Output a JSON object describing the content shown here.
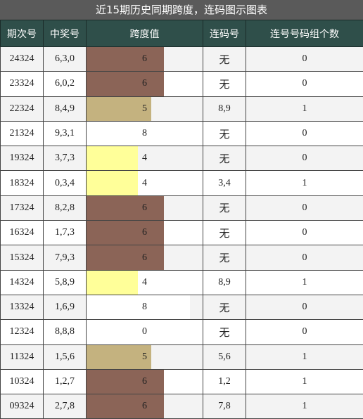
{
  "title": "近15期历史同期跨度，连码图示图表",
  "headers": [
    "期次号",
    "中奖号",
    "跨度值",
    "连码号",
    "连号号码组个数"
  ],
  "span_colors": {
    "0": "#ffffff",
    "4": "#ffff99",
    "5": "#c4b27f",
    "6": "#8b6457",
    "8": "#ffffff"
  },
  "span_max": 9,
  "rows": [
    {
      "issue": "24324",
      "numbers": "6,3,0",
      "span": "6",
      "lian": "无",
      "count": "0"
    },
    {
      "issue": "23324",
      "numbers": "6,0,2",
      "span": "6",
      "lian": "无",
      "count": "0"
    },
    {
      "issue": "22324",
      "numbers": "8,4,9",
      "span": "5",
      "lian": "8,9",
      "count": "1"
    },
    {
      "issue": "21324",
      "numbers": "9,3,1",
      "span": "8",
      "lian": "无",
      "count": "0"
    },
    {
      "issue": "19324",
      "numbers": "3,7,3",
      "span": "4",
      "lian": "无",
      "count": "0"
    },
    {
      "issue": "18324",
      "numbers": "0,3,4",
      "span": "4",
      "lian": "3,4",
      "count": "1"
    },
    {
      "issue": "17324",
      "numbers": "8,2,8",
      "span": "6",
      "lian": "无",
      "count": "0"
    },
    {
      "issue": "16324",
      "numbers": "1,7,3",
      "span": "6",
      "lian": "无",
      "count": "0"
    },
    {
      "issue": "15324",
      "numbers": "7,9,3",
      "span": "6",
      "lian": "无",
      "count": "0"
    },
    {
      "issue": "14324",
      "numbers": "5,8,9",
      "span": "4",
      "lian": "8,9",
      "count": "1"
    },
    {
      "issue": "13324",
      "numbers": "1,6,9",
      "span": "8",
      "lian": "无",
      "count": "0"
    },
    {
      "issue": "12324",
      "numbers": "8,8,8",
      "span": "0",
      "lian": "无",
      "count": "0"
    },
    {
      "issue": "11324",
      "numbers": "1,5,6",
      "span": "5",
      "lian": "5,6",
      "count": "1"
    },
    {
      "issue": "10324",
      "numbers": "1,2,7",
      "span": "6",
      "lian": "1,2",
      "count": "1"
    },
    {
      "issue": "09324",
      "numbers": "2,7,8",
      "span": "6",
      "lian": "7,8",
      "count": "1"
    }
  ]
}
